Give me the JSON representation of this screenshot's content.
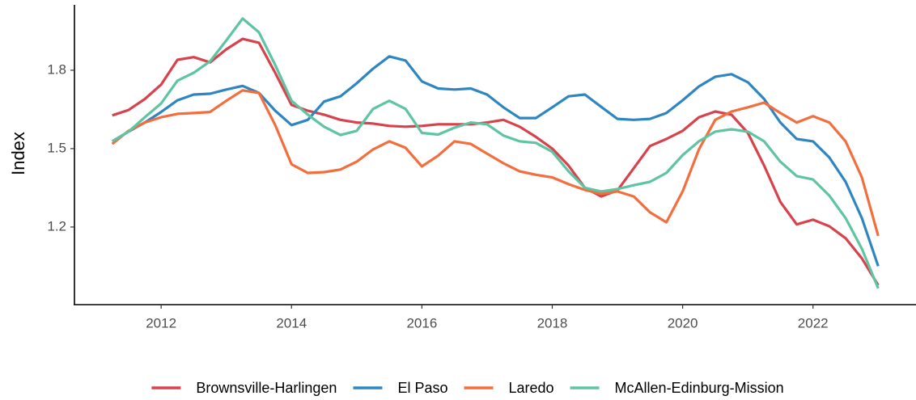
{
  "chart_data": {
    "type": "line",
    "y_label": "Index",
    "x": [
      2011.25,
      2011.5,
      2011.75,
      2012,
      2012.25,
      2012.5,
      2012.75,
      2013,
      2013.25,
      2013.5,
      2013.75,
      2014,
      2014.25,
      2014.5,
      2014.75,
      2015,
      2015.25,
      2015.5,
      2015.75,
      2016,
      2016.25,
      2016.5,
      2016.75,
      2017,
      2017.25,
      2017.5,
      2017.75,
      2018,
      2018.25,
      2018.5,
      2018.75,
      2019,
      2019.25,
      2019.5,
      2019.75,
      2020,
      2020.25,
      2020.5,
      2020.75,
      2021,
      2021.25,
      2021.5,
      2021.75,
      2022,
      2022.25,
      2022.5,
      2022.75,
      2023
    ],
    "series": [
      {
        "name": "Brownsville-Harlingen",
        "color": "#d7424c",
        "values": [
          1.627,
          1.648,
          1.69,
          1.745,
          1.84,
          1.85,
          1.83,
          1.88,
          1.92,
          1.905,
          1.79,
          1.667,
          1.645,
          1.63,
          1.61,
          1.6,
          1.596,
          1.587,
          1.584,
          1.587,
          1.593,
          1.593,
          1.593,
          1.6,
          1.61,
          1.584,
          1.545,
          1.5,
          1.435,
          1.35,
          1.317,
          1.34,
          1.425,
          1.51,
          1.537,
          1.568,
          1.62,
          1.642,
          1.63,
          1.56,
          1.435,
          1.296,
          1.21,
          1.228,
          1.203,
          1.157,
          1.08,
          0.977
        ]
      },
      {
        "name": "El Paso",
        "color": "#2e86c1",
        "values": [
          1.528,
          1.565,
          1.6,
          1.64,
          1.685,
          1.707,
          1.71,
          1.726,
          1.74,
          1.713,
          1.645,
          1.59,
          1.61,
          1.68,
          1.7,
          1.75,
          1.806,
          1.853,
          1.837,
          1.757,
          1.73,
          1.726,
          1.73,
          1.707,
          1.658,
          1.617,
          1.617,
          1.658,
          1.7,
          1.707,
          1.66,
          1.614,
          1.61,
          1.614,
          1.636,
          1.685,
          1.738,
          1.775,
          1.785,
          1.754,
          1.69,
          1.6,
          1.537,
          1.528,
          1.466,
          1.373,
          1.234,
          1.05
        ]
      },
      {
        "name": "Laredo",
        "color": "#f26f3d",
        "values": [
          1.518,
          1.568,
          1.6,
          1.62,
          1.633,
          1.636,
          1.64,
          1.683,
          1.723,
          1.713,
          1.59,
          1.44,
          1.407,
          1.41,
          1.42,
          1.45,
          1.497,
          1.528,
          1.503,
          1.432,
          1.473,
          1.528,
          1.518,
          1.481,
          1.444,
          1.413,
          1.4,
          1.39,
          1.364,
          1.342,
          1.327,
          1.336,
          1.317,
          1.256,
          1.218,
          1.336,
          1.497,
          1.61,
          1.642,
          1.658,
          1.676,
          1.636,
          1.6,
          1.624,
          1.6,
          1.528,
          1.39,
          1.166
        ]
      },
      {
        "name": "McAllen-Edinburg-Mission",
        "color": "#5ec4a1",
        "values": [
          1.528,
          1.565,
          1.62,
          1.673,
          1.76,
          1.79,
          1.834,
          1.914,
          1.998,
          1.945,
          1.82,
          1.683,
          1.63,
          1.584,
          1.552,
          1.568,
          1.652,
          1.683,
          1.652,
          1.56,
          1.554,
          1.58,
          1.6,
          1.593,
          1.55,
          1.528,
          1.522,
          1.488,
          1.413,
          1.35,
          1.336,
          1.345,
          1.36,
          1.373,
          1.407,
          1.475,
          1.528,
          1.565,
          1.574,
          1.565,
          1.528,
          1.45,
          1.395,
          1.382,
          1.32,
          1.234,
          1.117,
          0.965
        ]
      }
    ],
    "xlim": [
      2010.67,
      2023.58
    ],
    "xticks": [
      2012,
      2014,
      2016,
      2018,
      2020,
      2022
    ],
    "ylim": [
      0.906,
      2.044
    ],
    "yticks": [
      1.2,
      1.5,
      1.8
    ],
    "legend": "bottom"
  }
}
